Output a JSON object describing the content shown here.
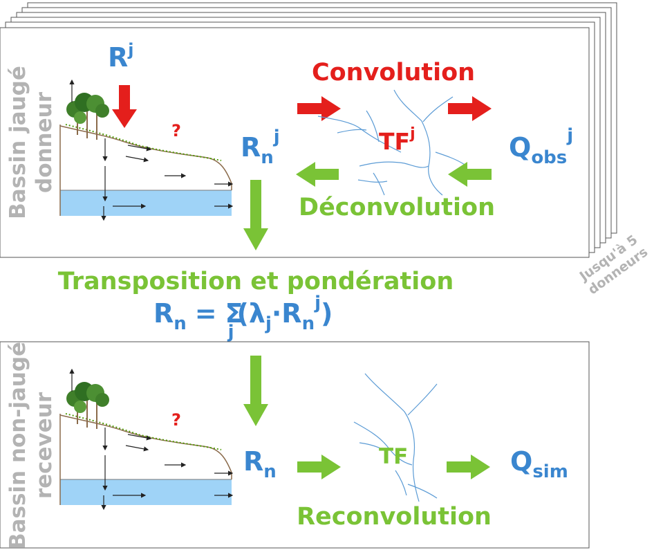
{
  "colors": {
    "blue": "#3a86cf",
    "red": "#e41f1c",
    "green": "#7ac336",
    "grey": "#b3b3b3",
    "water": "#9fd3f7",
    "river": "#5b9bd5"
  },
  "top_panel": {
    "side_label_line1": "Bassin jaugé",
    "side_label_line2": "donneur",
    "rain_symbol": {
      "base": "R",
      "sup": "j"
    },
    "question_mark": "?",
    "runoff_symbol": {
      "base": "R",
      "sub": "n",
      "sup": "j"
    },
    "convolution_label": "Convolution",
    "deconvolution_label": "Déconvolution",
    "transfer_function": {
      "base": "TF",
      "sup": "j"
    },
    "discharge_symbol": {
      "base": "Q",
      "sub": "obs",
      "sup": "j"
    }
  },
  "stack_note_line1": "Jusqu'à 5",
  "stack_note_line2": "donneurs",
  "middle": {
    "title": "Transposition et pondération",
    "equation": {
      "lhs": "R",
      "lhs_sub": "n",
      "equals": "=",
      "sigma": "Σ",
      "sigma_sub": "j",
      "open": "(",
      "lambda": "λ",
      "lambda_sub": "j",
      "dot": "·",
      "rhs": "R",
      "rhs_sub": "n",
      "rhs_sup": "j",
      "close": ")"
    }
  },
  "bottom_panel": {
    "side_label_line1": "Bassin non-jaugé",
    "side_label_line2": "receveur",
    "question_mark": "?",
    "runoff_symbol": {
      "base": "R",
      "sub": "n"
    },
    "transfer_function": "TF",
    "reconvolution_label": "Reconvolution",
    "discharge_symbol": {
      "base": "Q",
      "sub": "sim"
    }
  }
}
